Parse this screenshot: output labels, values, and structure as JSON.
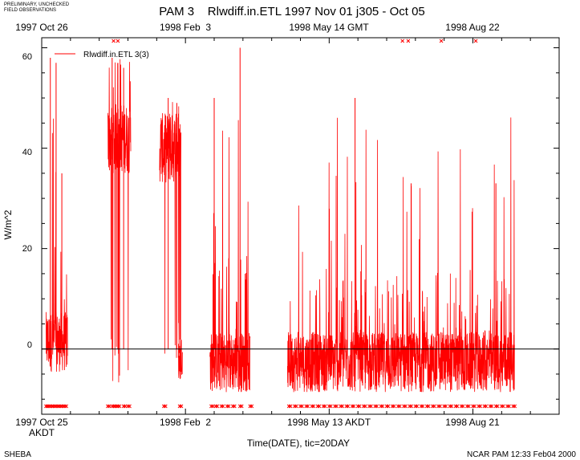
{
  "notice": {
    "line1": "PRELIMINARY, UNCHECKED",
    "line2": "FIELD OBSERVATIONS"
  },
  "footer": {
    "left": "SHEBA",
    "right": "NCAR PAM 12:33 Feb04 2000"
  },
  "colors": {
    "series": "#ff0000",
    "axis": "#000000",
    "background": "#ffffff"
  },
  "chart_data": {
    "type": "line",
    "title": "PAM 3    Rlwdiff.in.ETL 1997 Nov 01 j305 - Oct 05",
    "xlabel": "Time(DATE), tic=20DAY",
    "ylabel": "W/m^2",
    "ylim": [
      -13,
      62
    ],
    "xlim_days": [
      0,
      360
    ],
    "grid": false,
    "zero_line": 0,
    "legend": {
      "position": "top-left",
      "entries": [
        "Rlwdiff.in.ETL 3(3)"
      ]
    },
    "y_ticks": [
      0,
      20,
      40,
      60
    ],
    "y_tick_labels": [
      "0",
      "20",
      "40",
      "60"
    ],
    "x_tick_interval_days": 20,
    "top_axis": {
      "timezone": "GMT",
      "labels": [
        {
          "day": 0,
          "text": "1997 Oct 26"
        },
        {
          "day": 100,
          "text": "1998 Feb  3"
        },
        {
          "day": 200,
          "text": "1998 May 14 GMT"
        },
        {
          "day": 300,
          "text": "1998 Aug 22"
        }
      ]
    },
    "bottom_axis": {
      "timezone": "AKDT",
      "timezone_label": "AKDT",
      "labels": [
        {
          "day": 0,
          "text": "1997 Oct 25"
        },
        {
          "day": 100,
          "text": "1998 Feb  2"
        },
        {
          "day": 200,
          "text": "1998 May 13 AKDT"
        },
        {
          "day": 300,
          "text": "1998 Aug 21"
        }
      ]
    },
    "series": [
      {
        "name": "Rlwdiff.in.ETL 3(3)",
        "color": "#ff0000",
        "segments": [
          {
            "start_day": 3,
            "end_day": 18,
            "base": 2,
            "low": -9,
            "high": 58
          },
          {
            "start_day": 46,
            "end_day": 62,
            "base": 42,
            "low": -8,
            "high": 58
          },
          {
            "start_day": 82,
            "end_day": 97,
            "base": 40,
            "low": -4,
            "high": 50
          },
          {
            "start_day": 95,
            "end_day": 98,
            "base": -3,
            "low": -6,
            "high": 1
          },
          {
            "start_day": 117,
            "end_day": 145,
            "base": -2,
            "low": -10,
            "high": 60
          },
          {
            "start_day": 171,
            "end_day": 329,
            "base": -2,
            "low": -10,
            "high": 50
          }
        ],
        "peaks": [
          {
            "day": 6,
            "value": 58
          },
          {
            "day": 10,
            "value": 57
          },
          {
            "day": 14,
            "value": 35
          },
          {
            "day": 49,
            "value": 58
          },
          {
            "day": 53,
            "value": 57
          },
          {
            "day": 57,
            "value": 56
          },
          {
            "day": 88,
            "value": 50
          },
          {
            "day": 94,
            "value": 49
          },
          {
            "day": 120,
            "value": 50
          },
          {
            "day": 138,
            "value": 60
          },
          {
            "day": 218,
            "value": 50
          },
          {
            "day": 257,
            "value": 33
          },
          {
            "day": 316,
            "value": 33
          }
        ]
      }
    ],
    "flag_marks": {
      "bottom_days": [
        3,
        4,
        6,
        8,
        10,
        12,
        14,
        16,
        46,
        49,
        51,
        53,
        57,
        60,
        85,
        96,
        118,
        121,
        125,
        129,
        133,
        138,
        145,
        172,
        176,
        180,
        184,
        188,
        192,
        196,
        200,
        204,
        208,
        212,
        216,
        220,
        224,
        228,
        232,
        236,
        240,
        244,
        248,
        252,
        256,
        260,
        264,
        268,
        272,
        276,
        280,
        284,
        288,
        292,
        296,
        300,
        304,
        308,
        312,
        316,
        320,
        324,
        328
      ],
      "top_days": [
        50,
        53,
        251,
        255,
        278,
        302
      ]
    }
  }
}
